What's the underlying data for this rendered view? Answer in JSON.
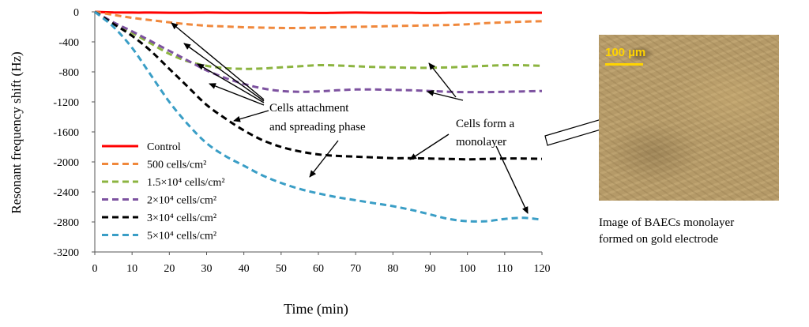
{
  "chart_data": {
    "type": "line",
    "title": "",
    "xlabel": "Time (min)",
    "ylabel": "Resonant frequency shift (Hz)",
    "xlim": [
      0,
      120
    ],
    "ylim": [
      -3200,
      0
    ],
    "xticks": [
      0,
      10,
      20,
      30,
      40,
      50,
      60,
      70,
      80,
      90,
      100,
      110,
      120
    ],
    "yticks": [
      0,
      -400,
      -800,
      -1200,
      -1600,
      -2000,
      -2400,
      -2800,
      -3200
    ],
    "x": [
      0,
      5,
      10,
      15,
      20,
      25,
      30,
      35,
      40,
      45,
      50,
      55,
      60,
      65,
      70,
      75,
      80,
      85,
      90,
      95,
      100,
      105,
      110,
      115,
      120
    ],
    "series": [
      {
        "name": "Control",
        "color": "#ff0000",
        "dash": "solid",
        "values": [
          0,
          -8,
          -10,
          -10,
          -12,
          -12,
          -10,
          -12,
          -12,
          -12,
          -12,
          -12,
          -15,
          -12,
          -10,
          -12,
          -12,
          -12,
          -15,
          -12,
          -12,
          -12,
          -12,
          -12,
          -12
        ]
      },
      {
        "name": "500 cells/cm²",
        "color": "#f0883c",
        "dash": "dashed",
        "values": [
          0,
          -40,
          -80,
          -110,
          -140,
          -165,
          -185,
          -195,
          -205,
          -210,
          -215,
          -215,
          -210,
          -205,
          -200,
          -195,
          -190,
          -185,
          -180,
          -175,
          -165,
          -150,
          -140,
          -130,
          -125
        ]
      },
      {
        "name": "1.5×10⁴ cells/cm²",
        "color": "#8cb440",
        "dash": "dashed",
        "values": [
          0,
          -150,
          -280,
          -420,
          -560,
          -660,
          -720,
          -750,
          -760,
          -755,
          -740,
          -725,
          -710,
          -715,
          -725,
          -735,
          -740,
          -745,
          -745,
          -740,
          -730,
          -720,
          -710,
          -712,
          -720
        ]
      },
      {
        "name": "2×10⁴ cells/cm²",
        "color": "#7d52a0",
        "dash": "dashed",
        "values": [
          0,
          -140,
          -260,
          -390,
          -520,
          -650,
          -780,
          -880,
          -960,
          -1020,
          -1055,
          -1065,
          -1060,
          -1045,
          -1035,
          -1035,
          -1040,
          -1045,
          -1055,
          -1065,
          -1070,
          -1070,
          -1065,
          -1060,
          -1055
        ]
      },
      {
        "name": "3×10⁴ cells/cm²",
        "color": "#000000",
        "dash": "dashed",
        "values": [
          0,
          -160,
          -320,
          -520,
          -760,
          -1000,
          -1240,
          -1420,
          -1580,
          -1710,
          -1800,
          -1860,
          -1900,
          -1920,
          -1930,
          -1940,
          -1950,
          -1950,
          -1955,
          -1960,
          -1965,
          -1960,
          -1955,
          -1955,
          -1960
        ]
      },
      {
        "name": "5×10⁴ cells/cm²",
        "color": "#3a9ec6",
        "dash": "dashed",
        "values": [
          0,
          -200,
          -480,
          -840,
          -1200,
          -1500,
          -1750,
          -1920,
          -2050,
          -2180,
          -2280,
          -2360,
          -2420,
          -2470,
          -2510,
          -2550,
          -2590,
          -2640,
          -2700,
          -2760,
          -2790,
          -2790,
          -2760,
          -2745,
          -2770
        ]
      }
    ],
    "legend_position": "lower-left",
    "grid": false,
    "annotations": {
      "attachment": "Cells attachment\nand spreading phase",
      "monolayer": "Cells form a\nmonolayer"
    }
  },
  "image_panel": {
    "scale_label": "100 µm",
    "caption_line1": "Image of BAECs monolayer",
    "caption_line2": "formed on gold electrode"
  }
}
